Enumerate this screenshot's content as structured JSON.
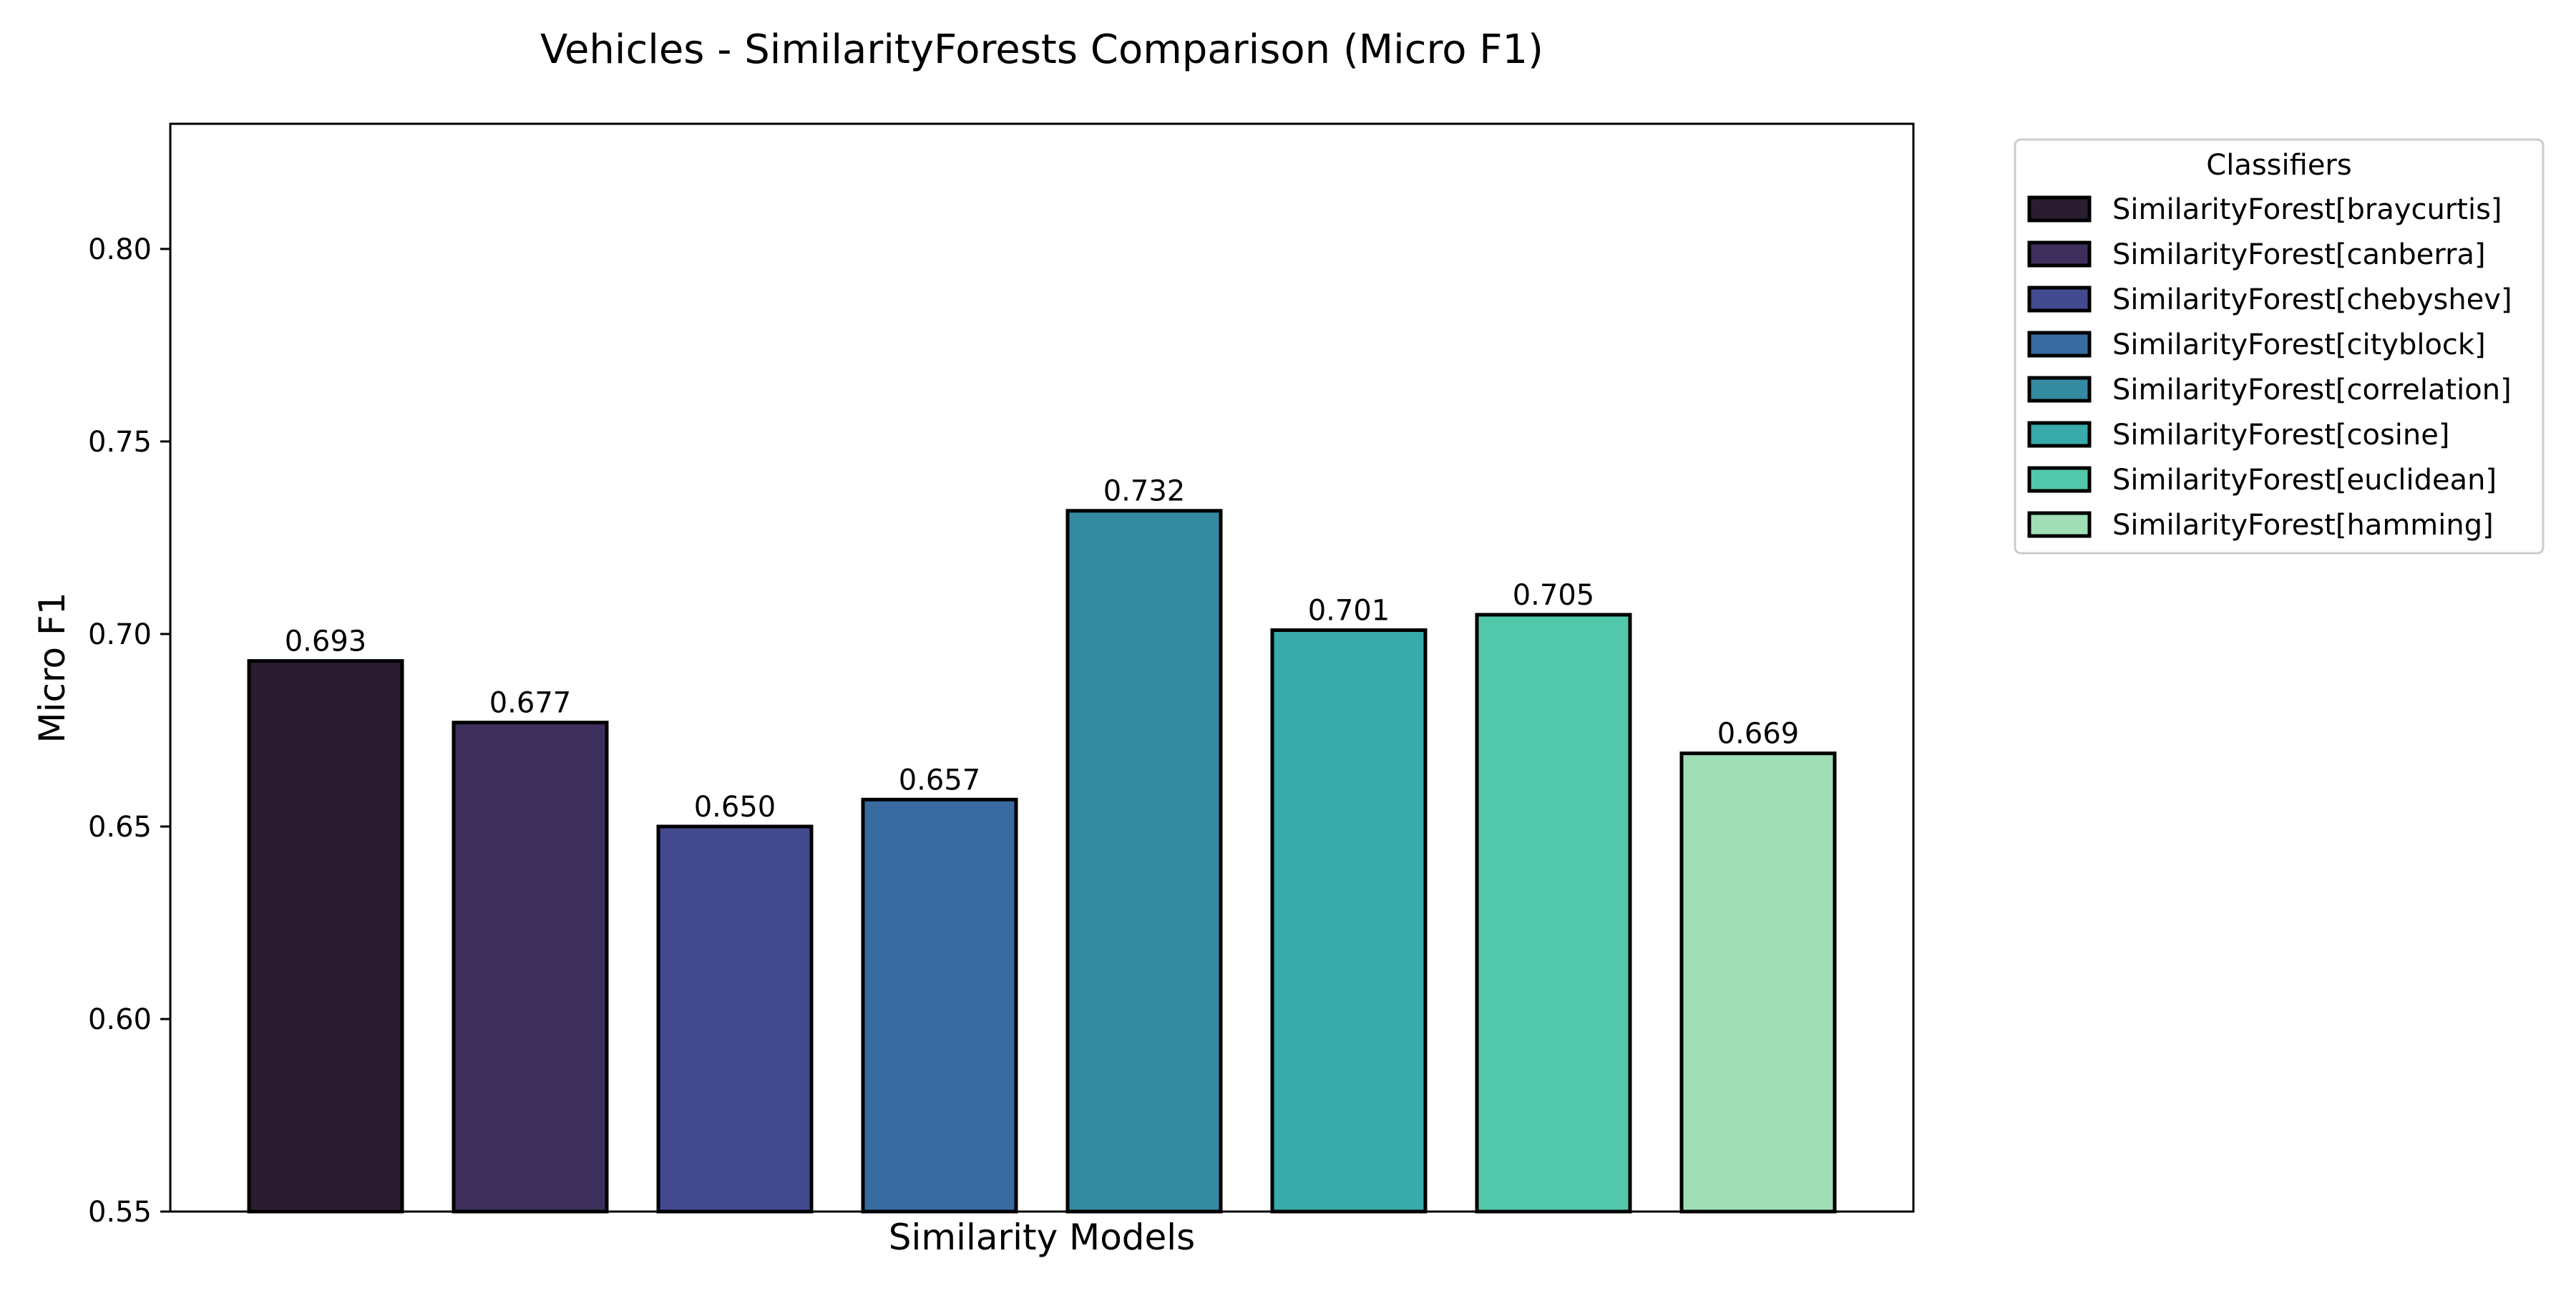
{
  "chart_data": {
    "type": "bar",
    "title": "Vehicles - SimilarityForests Comparison (Micro F1)",
    "xlabel": "Similarity Models",
    "ylabel": "Micro F1",
    "ylim": [
      0.55,
      0.8325
    ],
    "yticks": [
      0.55,
      0.6,
      0.65,
      0.7,
      0.75,
      0.8
    ],
    "ytick_labels": [
      "0.55",
      "0.60",
      "0.65",
      "0.70",
      "0.75",
      "0.80"
    ],
    "grid": false,
    "legend_title": "Classifiers",
    "legend_position": "outside-top-right",
    "categories": [
      "SimilarityForest[braycurtis]",
      "SimilarityForest[canberra]",
      "SimilarityForest[chebyshev]",
      "SimilarityForest[cityblock]",
      "SimilarityForest[correlation]",
      "SimilarityForest[cosine]",
      "SimilarityForest[euclidean]",
      "SimilarityForest[hamming]"
    ],
    "values": [
      0.693,
      0.677,
      0.65,
      0.657,
      0.732,
      0.701,
      0.705,
      0.669
    ],
    "value_labels": [
      "0.693",
      "0.677",
      "0.650",
      "0.657",
      "0.732",
      "0.701",
      "0.705",
      "0.669"
    ],
    "colors": [
      "#2a1d2f",
      "#3d2f5c",
      "#434a8f",
      "#386ba0",
      "#338aa1",
      "#37aaa9",
      "#52c8ab",
      "#a0dfb5"
    ],
    "edge_color": "#000000"
  }
}
